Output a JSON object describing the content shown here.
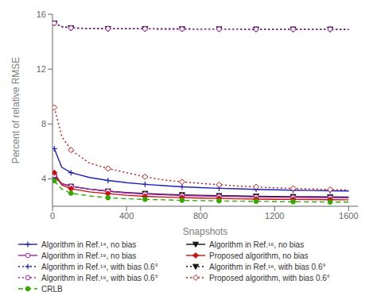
{
  "chart_data": {
    "type": "line",
    "xlabel": "Snapshots",
    "ylabel": "Percent of relative RMSE",
    "x": [
      10,
      50,
      100,
      200,
      300,
      400,
      500,
      600,
      700,
      800,
      900,
      1000,
      1100,
      1200,
      1300,
      1400,
      1500,
      1600
    ],
    "series": [
      {
        "name": "Algorithm in Ref.¹⁴, no bias",
        "color": "#2020BB",
        "line_style": "solid",
        "marker": "plus",
        "values": [
          6.2,
          4.85,
          4.45,
          4.1,
          3.88,
          3.72,
          3.6,
          3.5,
          3.42,
          3.36,
          3.31,
          3.27,
          3.23,
          3.2,
          3.17,
          3.15,
          3.13,
          3.11
        ]
      },
      {
        "name": "Algorithm in Ref.¹⁶, no bias",
        "color": "#111111",
        "line_style": "solid",
        "marker": "triangle_down",
        "values": [
          4.15,
          3.65,
          3.45,
          3.25,
          3.1,
          3.0,
          2.93,
          2.87,
          2.83,
          2.8,
          2.77,
          2.75,
          2.73,
          2.71,
          2.7,
          2.69,
          2.68,
          2.67
        ]
      },
      {
        "name": "Algorithm in Ref.¹⁹, no bias",
        "color": "#AA22AA",
        "line_style": "solid",
        "marker": "circle_open",
        "values": [
          4.25,
          3.65,
          3.45,
          3.25,
          3.1,
          2.97,
          2.89,
          2.83,
          2.78,
          2.75,
          2.72,
          2.7,
          2.68,
          2.66,
          2.65,
          2.64,
          2.63,
          2.62
        ]
      },
      {
        "name": "Proposed algorithm, no bias",
        "color": "#CC1111",
        "line_style": "solid",
        "marker": "diamond",
        "values": [
          4.45,
          3.55,
          3.28,
          3.05,
          2.92,
          2.8,
          2.72,
          2.67,
          2.63,
          2.59,
          2.57,
          2.54,
          2.52,
          2.51,
          2.5,
          2.49,
          2.48,
          2.47
        ]
      },
      {
        "name": "Algorithm in Ref.¹⁴, with bias 0.6°",
        "color": "#2020BB",
        "line_style": "dotted",
        "marker": "plus",
        "values": [
          15.35,
          15.1,
          15.0,
          14.97,
          14.95,
          14.94,
          14.94,
          14.93,
          14.93,
          14.92,
          14.92,
          14.92,
          14.91,
          14.91,
          14.91,
          14.91,
          14.91,
          14.9
        ]
      },
      {
        "name": "Algorithm in Ref.¹⁶, with bias 0.6°",
        "color": "#111111",
        "line_style": "dotted",
        "marker": "triangle_down",
        "values": [
          15.35,
          15.1,
          15.0,
          14.97,
          14.95,
          14.94,
          14.94,
          14.93,
          14.93,
          14.92,
          14.92,
          14.92,
          14.91,
          14.91,
          14.91,
          14.91,
          14.91,
          14.9
        ]
      },
      {
        "name": "Algorithm in Ref.¹⁹, with bias 0.6°",
        "color": "#AA22AA",
        "line_style": "dotted",
        "marker": "circle_open",
        "values": [
          15.35,
          15.1,
          15.0,
          14.97,
          14.95,
          14.94,
          14.94,
          14.93,
          14.93,
          14.92,
          14.92,
          14.92,
          14.91,
          14.91,
          14.91,
          14.91,
          14.91,
          14.9
        ]
      },
      {
        "name": "Proposed algorithm, with bias 0.6°",
        "color": "#CC1111",
        "line_style": "dotted",
        "marker": "diamond_open",
        "values": [
          9.2,
          7.1,
          6.1,
          5.15,
          4.75,
          4.45,
          4.15,
          3.92,
          3.78,
          3.67,
          3.57,
          3.48,
          3.41,
          3.35,
          3.3,
          3.26,
          3.22,
          3.19
        ]
      },
      {
        "name": "CRLB",
        "color": "#33AA00",
        "line_style": "dashed",
        "marker": "circle",
        "values": [
          3.85,
          3.25,
          2.95,
          2.75,
          2.62,
          2.55,
          2.5,
          2.47,
          2.43,
          2.41,
          2.39,
          2.37,
          2.36,
          2.35,
          2.33,
          2.32,
          2.31,
          2.3
        ]
      }
    ],
    "xlim": [
      0,
      1650
    ],
    "ylim": [
      2,
      16
    ],
    "xticks": [
      0,
      400,
      800,
      1200,
      1600
    ],
    "yticks": [
      4,
      8,
      12,
      16
    ],
    "grid": false,
    "legend": "bottom"
  }
}
